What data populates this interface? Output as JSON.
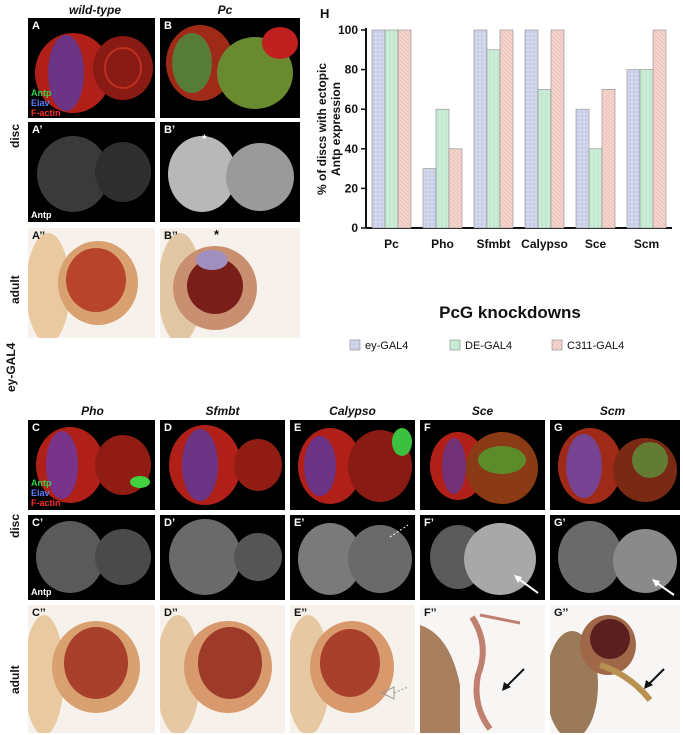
{
  "top_titles": {
    "wt": "wild-type",
    "pc": "Pc"
  },
  "panel_labels": {
    "A": "A",
    "B": "B",
    "Ap": "A’",
    "Bp": "B’",
    "App": "A’’",
    "Bpp": "B’’",
    "C": "C",
    "D": "D",
    "E": "E",
    "F": "F",
    "G": "G",
    "Cp": "C’",
    "Dp": "D’",
    "Ep": "E’",
    "Fp": "F’",
    "Gp": "G’",
    "Cpp": "C’’",
    "Dpp": "D’’",
    "Epp": "E’’",
    "Fpp": "F’’",
    "Gpp": "G’’"
  },
  "stain_legend": {
    "antp": "Antp",
    "elav": "Elav",
    "factin": "F-actin"
  },
  "antp_label": "Antp",
  "asterisk": "*",
  "row_labels": {
    "disc": "disc",
    "adult": "adult",
    "driver": "ey-GAL4"
  },
  "bottom_titles": [
    "Pho",
    "Sfmbt",
    "Calypso",
    "Sce",
    "Scm"
  ],
  "colors": {
    "ey": "#c5cbe6",
    "de": "#c2e9cf",
    "c311": "#f0c8c0"
  },
  "chart_data": {
    "type": "bar",
    "panel_label": "H",
    "categories": [
      "Pc",
      "Pho",
      "Sfmbt",
      "Calypso",
      "Sce",
      "Scm"
    ],
    "series": [
      {
        "name": "ey-GAL4",
        "values": [
          100,
          30,
          100,
          100,
          60,
          80
        ]
      },
      {
        "name": "DE-GAL4",
        "values": [
          100,
          60,
          90,
          70,
          40,
          80
        ]
      },
      {
        "name": "C311-GAL4",
        "values": [
          100,
          40,
          100,
          100,
          70,
          100
        ]
      }
    ],
    "ylabel": "% of discs with ectopic Antp expression",
    "ylabel_lines": [
      "% of discs with ectopic",
      "Antp expression"
    ],
    "xlabel": "PcG knockdowns",
    "ylim": [
      0,
      100
    ],
    "yticks": [
      0,
      20,
      40,
      60,
      80,
      100
    ],
    "legend_position": "bottom",
    "grid": false
  }
}
